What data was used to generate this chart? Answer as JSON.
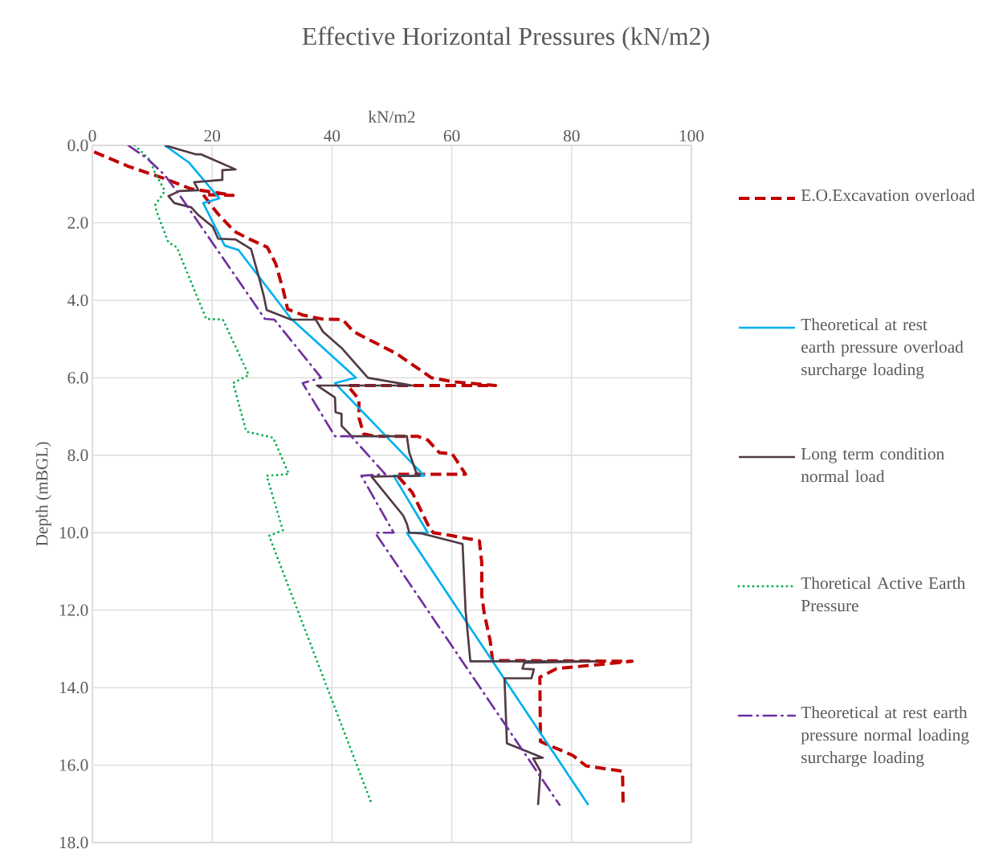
{
  "chart_data": {
    "type": "line",
    "title": "Effective Horizontal Pressures (kN/m2)",
    "xlabel": "kN/m2",
    "ylabel": "Depth (mBGL)",
    "xlim": [
      0,
      100
    ],
    "ylim": [
      18,
      0
    ],
    "xticks": [
      0,
      20,
      40,
      60,
      80,
      100
    ],
    "yticks": [
      {
        "value": 0,
        "label": "0.0"
      },
      {
        "value": 2,
        "label": "2.0"
      },
      {
        "value": 4,
        "label": "4.0"
      },
      {
        "value": 6,
        "label": "6.0"
      },
      {
        "value": 8,
        "label": "8.0"
      },
      {
        "value": 10,
        "label": "10.0"
      },
      {
        "value": 12,
        "label": "12.0"
      },
      {
        "value": 14,
        "label": "14.0"
      },
      {
        "value": 16,
        "label": "16.0"
      },
      {
        "value": 18,
        "label": "18.0"
      }
    ],
    "grid": true,
    "legend": "right",
    "marker": "none",
    "series": [
      {
        "name": "E.O.Excavation overload",
        "color": "#c00000",
        "line_style": "dashed",
        "x": [
          0.3,
          6.0,
          12.3,
          16.4,
          23.5,
          18.5,
          20.8,
          23.7,
          26.1,
          29.2,
          30.6,
          31.9,
          32.6,
          35.1,
          38.2,
          41.8,
          43.6,
          48.9,
          50.7,
          56.6,
          60.1,
          67.3,
          42.6,
          44.5,
          44.5,
          45.3,
          47.2,
          54.3,
          56.0,
          57.9,
          60.1,
          62.3,
          50.7,
          53.4,
          56.0,
          56.9,
          60.1,
          64.6,
          65.0,
          65.0,
          65.4,
          66.4,
          66.8,
          90.1,
          77.5,
          74.7,
          74.8,
          76.1,
          80.2,
          82.4,
          88.5,
          88.6
        ],
        "values": [
          0.17,
          0.54,
          0.87,
          1.12,
          1.29,
          1.27,
          1.74,
          2.22,
          2.41,
          2.63,
          3.05,
          3.76,
          4.23,
          4.38,
          4.48,
          4.5,
          4.81,
          5.23,
          5.37,
          6.0,
          6.1,
          6.2,
          6.2,
          6.56,
          7.03,
          7.45,
          7.51,
          7.51,
          7.61,
          7.93,
          7.97,
          8.49,
          8.49,
          8.96,
          9.79,
          10.0,
          10.08,
          10.21,
          10.77,
          11.6,
          12.07,
          12.78,
          13.3,
          13.32,
          13.51,
          13.73,
          15.39,
          15.48,
          15.75,
          16.02,
          16.16,
          17.05
        ]
      },
      {
        "name": "Theoretical at rest earth pressure overload surcharge loading",
        "color": "#00b0f0",
        "line_style": "solid",
        "x": [
          12.1,
          16.1,
          21.2,
          18.5,
          22.1,
          24.4,
          33.2,
          44.0,
          40.5,
          55.4,
          50.3,
          56.0,
          52.5,
          82.8
        ],
        "values": [
          0.0,
          0.44,
          1.37,
          1.49,
          2.59,
          2.7,
          4.48,
          6.0,
          6.14,
          8.53,
          8.53,
          10.0,
          10.0,
          17.03
        ]
      },
      {
        "name": "Long term condition normal load",
        "color": "#503a44",
        "line_style": "solid",
        "x": [
          12.1,
          17.2,
          18.1,
          23.9,
          21.7,
          21.7,
          17.0,
          17.7,
          14.5,
          12.7,
          13.7,
          16.5,
          17.7,
          20.1,
          21.0,
          23.9,
          26.5,
          27.9,
          28.6,
          29.1,
          33.2,
          37.3,
          38.5,
          41.6,
          46.0,
          53.4,
          37.5,
          40.5,
          40.6,
          41.6,
          41.6,
          43.3,
          52.5,
          52.9,
          54.0,
          54.6,
          46.6,
          51.9,
          52.5,
          52.9,
          55.0,
          61.8,
          62.3,
          63.1,
          84.2,
          72.1,
          71.8,
          73.7,
          73.3,
          68.8,
          69.2,
          75.2,
          73.6,
          74.8,
          74.4
        ],
        "values": [
          0.0,
          0.23,
          0.23,
          0.62,
          0.64,
          0.89,
          0.95,
          1.16,
          1.18,
          1.31,
          1.49,
          1.6,
          1.8,
          2.1,
          2.41,
          2.43,
          2.68,
          3.46,
          3.88,
          4.25,
          4.5,
          4.5,
          4.81,
          5.23,
          6.0,
          6.2,
          6.2,
          6.51,
          6.89,
          6.93,
          7.24,
          7.51,
          7.51,
          7.93,
          8.42,
          8.53,
          8.55,
          9.56,
          9.77,
          10.0,
          10.02,
          10.29,
          12.01,
          13.32,
          13.32,
          13.36,
          13.51,
          13.53,
          13.76,
          13.76,
          15.44,
          15.81,
          15.83,
          16.16,
          17.03
        ]
      },
      {
        "name": "Thoretical Active Earth Pressure",
        "color": "#00b050",
        "line_style": "dotted",
        "x": [
          7.1,
          9.7,
          10.3,
          12.1,
          10.5,
          10.7,
          12.7,
          14.1,
          19.0,
          21.8,
          26.1,
          23.5,
          25.7,
          30.2,
          32.8,
          29.1,
          31.8,
          29.5,
          46.5
        ],
        "values": [
          0.0,
          0.39,
          0.66,
          1.18,
          1.54,
          1.7,
          2.51,
          2.63,
          4.48,
          4.5,
          5.93,
          6.14,
          7.39,
          7.55,
          8.49,
          8.53,
          9.94,
          10.08,
          16.95
        ]
      },
      {
        "name": "Theoretical at rest earth pressure normal loading surcharge loading",
        "color": "#7030a0",
        "line_style": "dashdot",
        "x": [
          6.0,
          9.1,
          12.1,
          14.5,
          28.8,
          30.4,
          38.2,
          35.1,
          40.5,
          43.2,
          48.9,
          44.9,
          50.3,
          47.2,
          78.0
        ],
        "values": [
          0.0,
          0.33,
          0.77,
          1.27,
          4.48,
          4.5,
          6.0,
          6.14,
          7.51,
          7.51,
          8.49,
          8.53,
          10.0,
          10.0,
          17.03
        ]
      }
    ]
  }
}
